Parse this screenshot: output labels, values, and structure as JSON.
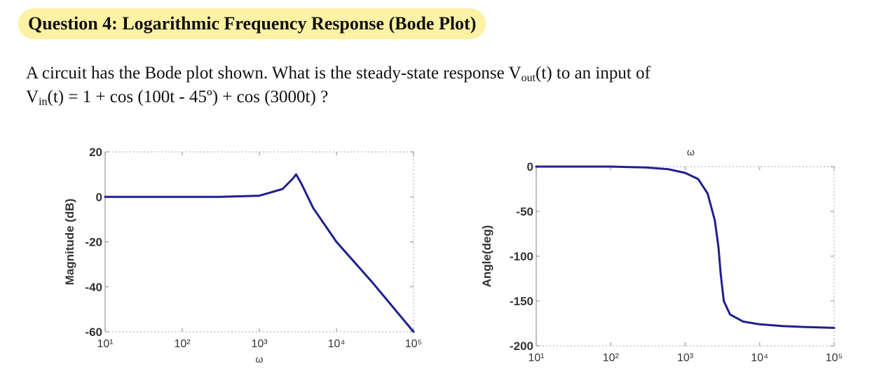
{
  "title": "Question 4: Logarithmic Frequency Response (Bode Plot)",
  "question": {
    "line1": "A circuit has the Bode plot shown. What is the steady-state response V",
    "vout_sub": "out",
    "line1_end": "(t) to an input of",
    "vin": "V",
    "vin_sub": "in",
    "line2": "(t) = 1 + cos (100t - 45º) + cos (3000t) ?"
  },
  "chart_data": [
    {
      "type": "line",
      "title": "",
      "xlabel": "ω",
      "ylabel": "Magnitude (dB)",
      "xscale": "log",
      "xlim": [
        10,
        100000
      ],
      "ylim": [
        -60,
        20
      ],
      "x_ticks": [
        "10¹",
        "10²",
        "10³",
        "10⁴",
        "10⁵"
      ],
      "y_ticks": [
        "20",
        "0",
        "-20",
        "-40",
        "-60"
      ],
      "line_color": "#1f1f8f",
      "series": [
        {
          "x": [
            10,
            100,
            300,
            1000,
            2000,
            2700,
            3000,
            3500,
            5000,
            10000,
            30000,
            100000
          ],
          "y": [
            0,
            0,
            0,
            0.5,
            3.5,
            8,
            10,
            6,
            -5,
            -20,
            -38.5,
            -60
          ]
        }
      ]
    },
    {
      "type": "line",
      "title": "",
      "top_label": "ω",
      "ylabel": "Angle(deg)",
      "xscale": "log",
      "xlim": [
        10,
        100000
      ],
      "ylim": [
        -200,
        0
      ],
      "x_ticks": [
        "10¹",
        "10²",
        "10³",
        "10⁴",
        "10⁵"
      ],
      "y_ticks": [
        "0",
        "-50",
        "-100",
        "-150",
        "-200"
      ],
      "line_color": "#1f1f8f",
      "series": [
        {
          "x": [
            10,
            100,
            300,
            600,
            1000,
            1500,
            2000,
            2500,
            2800,
            3000,
            3300,
            4000,
            6000,
            10000,
            20000,
            40000,
            100000
          ],
          "y": [
            0,
            0,
            -1,
            -3,
            -7,
            -14,
            -30,
            -60,
            -90,
            -120,
            -150,
            -165,
            -173,
            -176,
            -178,
            -179,
            -180
          ]
        }
      ]
    }
  ]
}
